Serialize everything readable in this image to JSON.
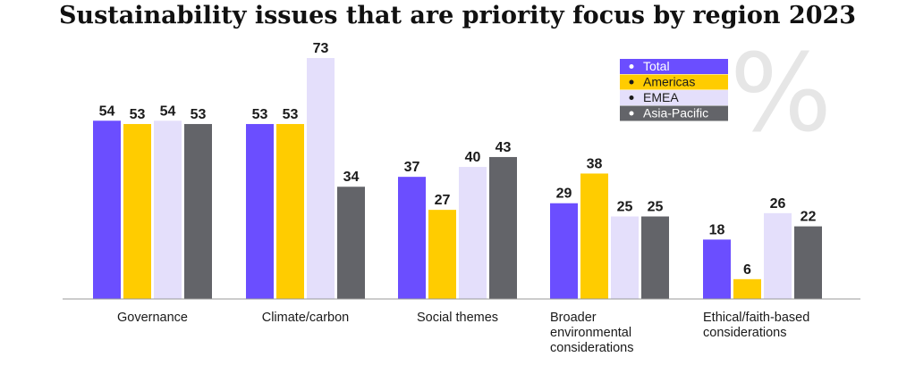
{
  "chart_data": {
    "type": "bar",
    "title": "Sustainability issues that are priority focus by region 2023",
    "unit_symbol": "%",
    "categories": [
      [
        "Governance"
      ],
      [
        "Climate/carbon"
      ],
      [
        "Social themes"
      ],
      [
        "Broader",
        "environmental",
        "considerations"
      ],
      [
        "Ethical/faith-based",
        "considerations"
      ]
    ],
    "series": [
      {
        "name": "Total",
        "values": [
          54,
          53,
          37,
          29,
          18
        ],
        "color": "#6b4eff"
      },
      {
        "name": "Americas",
        "values": [
          53,
          53,
          27,
          38,
          6
        ],
        "color": "#ffcc00"
      },
      {
        "name": "EMEA",
        "values": [
          54,
          73,
          40,
          25,
          26
        ],
        "color": "#e4dffb"
      },
      {
        "name": "Asia-Pacific",
        "values": [
          53,
          34,
          43,
          25,
          22
        ],
        "color": "#636469"
      }
    ],
    "ylim": [
      0,
      80
    ],
    "grid": false,
    "legend_position": "top-right",
    "legend_text_colors": [
      "#ffffff",
      "#1a1a1a",
      "#1a1a1a",
      "#ffffff"
    ],
    "baseline_color": "#999999"
  }
}
